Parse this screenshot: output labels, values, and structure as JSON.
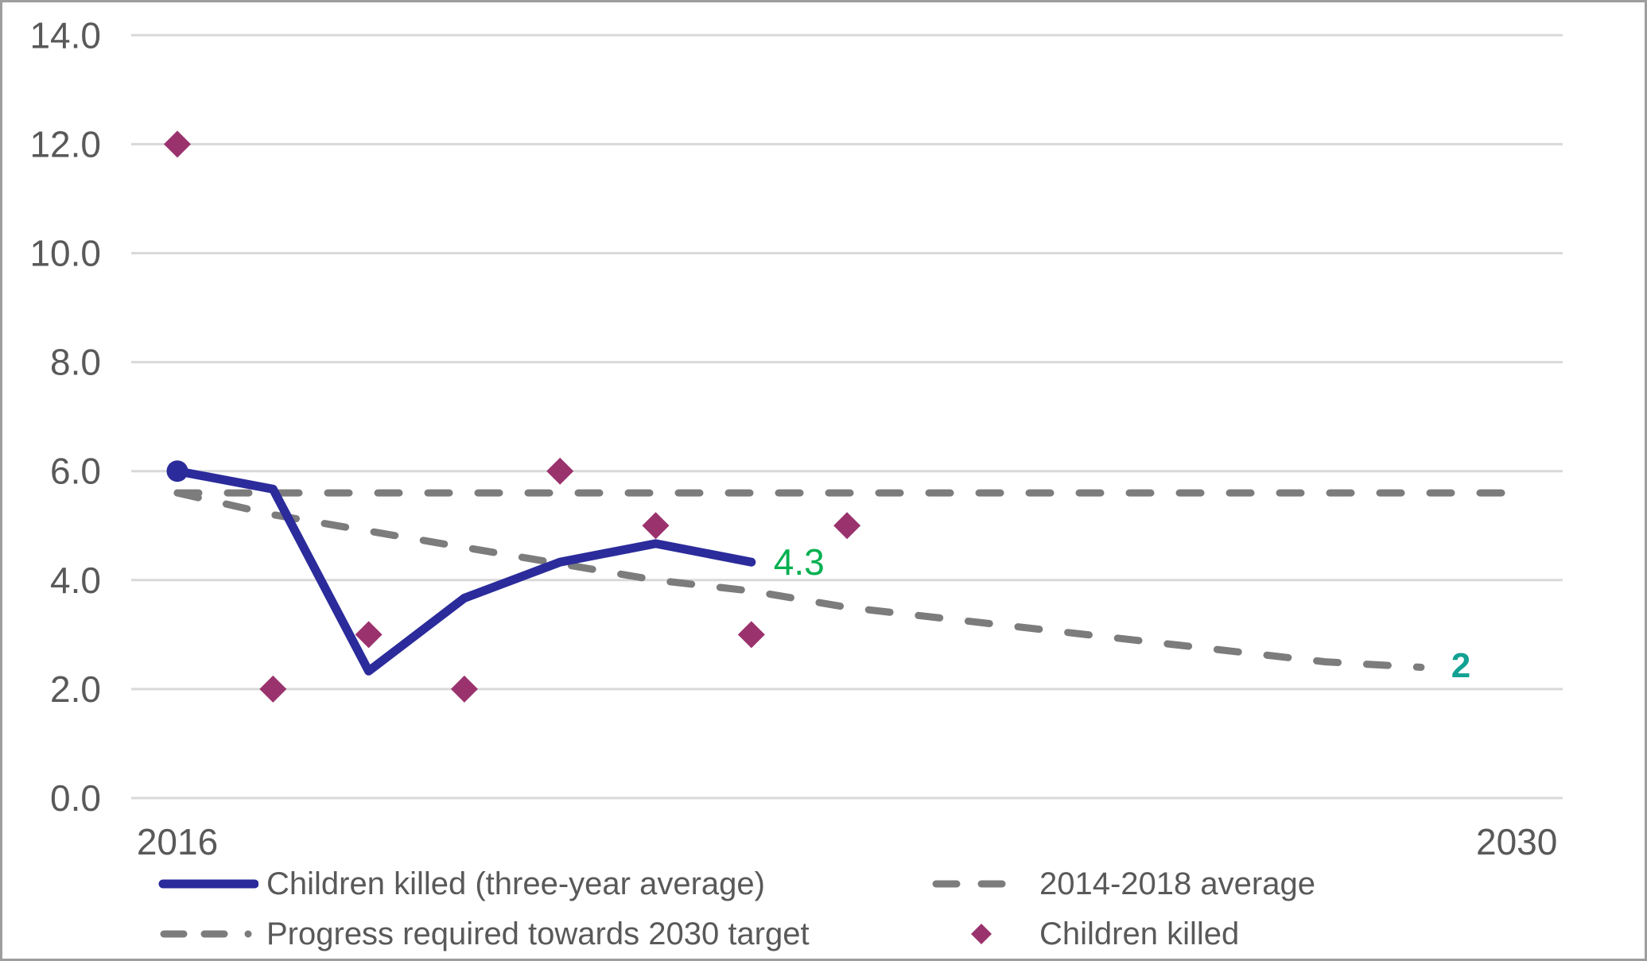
{
  "chart_data": {
    "type": "line",
    "title": "",
    "grid": true,
    "legend_position": "bottom",
    "x_axis": {
      "kind": "category-years",
      "labels": [
        {
          "text": "2016",
          "year": 2016
        },
        {
          "text": "2030",
          "year": 2030
        }
      ],
      "range_years": [
        2016,
        2030
      ]
    },
    "y_axis": {
      "min": 0,
      "max": 14,
      "step": 2,
      "tick_labels": [
        "0.0",
        "2.0",
        "4.0",
        "6.0",
        "8.0",
        "10.0",
        "12.0",
        "14.0"
      ]
    },
    "series": [
      {
        "id": "avg_2014_2018",
        "name": "2014-2018 average",
        "type": "dashed-line",
        "color": "#7C7C7C",
        "years": [
          2016,
          2030
        ],
        "values": [
          5.6,
          5.6
        ]
      },
      {
        "id": "progress_required",
        "name": "Progress required towards 2030 target",
        "type": "dashed-line",
        "color": "#7C7C7C",
        "years": [
          2016,
          2017,
          2018,
          2019,
          2020,
          2021,
          2022,
          2023,
          2024,
          2025,
          2026,
          2027,
          2028,
          2029
        ],
        "values": [
          5.6,
          5.2,
          4.9,
          4.6,
          4.3,
          4.0,
          3.8,
          3.5,
          3.3,
          3.1,
          2.9,
          2.7,
          2.5,
          2.4
        ],
        "end_label": {
          "text": "2",
          "color": "#11A192"
        }
      },
      {
        "id": "three_year_average",
        "name": "Children killed (three-year average)",
        "type": "line",
        "color": "#2B2B9B",
        "first_point_marker": "circle",
        "years": [
          2016,
          2017,
          2018,
          2019,
          2020,
          2021,
          2022
        ],
        "values": [
          6.0,
          5.67,
          2.33,
          3.67,
          4.33,
          4.67,
          4.33
        ],
        "end_label": {
          "text": "4.3",
          "color": "#00B050"
        }
      },
      {
        "id": "children_killed",
        "name": "Children killed",
        "type": "scatter",
        "marker": "diamond",
        "color": "#9A336D",
        "years": [
          2016,
          2017,
          2018,
          2019,
          2020,
          2021,
          2022,
          2023
        ],
        "values": [
          12,
          2,
          3,
          2,
          6,
          5,
          3,
          5
        ]
      }
    ]
  },
  "legend": {
    "items": [
      {
        "label": "Children killed (three-year average)",
        "marker": "solid-line",
        "color": "#2B2B9B"
      },
      {
        "label": "Progress required towards 2030 target",
        "marker": "dash-dash-dot-line",
        "color": "#7C7C7C"
      },
      {
        "label": "2014-2018 average",
        "marker": "dashed-line",
        "color": "#7C7C7C"
      },
      {
        "label": "Children killed",
        "marker": "diamond",
        "color": "#9A336D"
      }
    ]
  },
  "colors": {
    "background": "#FFFFFF",
    "border": "#9E9E9E",
    "grid": "#D9D9D9",
    "axis_text": "#595959",
    "legend_text": "#595959",
    "line_blue": "#2B2B9B",
    "dash_gray": "#7C7C7C",
    "diamond_magenta": "#9A336D",
    "label_green": "#00B050",
    "label_teal": "#11A192"
  }
}
